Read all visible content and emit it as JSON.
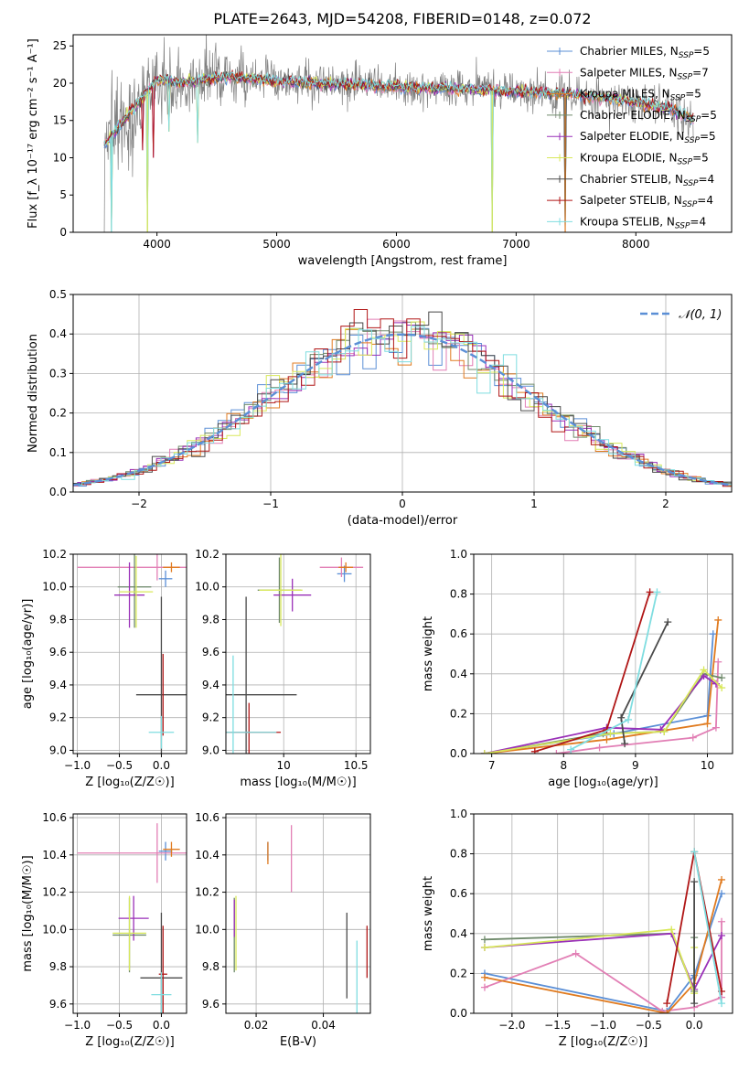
{
  "figure_title": "PLATE=2643, MJD=54208, FIBERID=0148, z=0.072",
  "colors": {
    "chabrier_miles": "#5b8fd6",
    "salpeter_miles": "#e27fb5",
    "kroupa_miles": "#e07b20",
    "chabrier_elodie": "#6f8a6b",
    "salpeter_elodie": "#9a30b8",
    "kroupa_elodie": "#d8e85a",
    "chabrier_stelib": "#4a4a4a",
    "salpeter_stelib": "#b01616",
    "kroupa_stelib": "#7fdde0",
    "data_spectrum": "#808080"
  },
  "models": [
    {
      "name": "Chabrier MILES",
      "nssp": "5",
      "color": "#5b8fd6"
    },
    {
      "name": "Salpeter MILES",
      "nssp": "7",
      "color": "#e27fb5"
    },
    {
      "name": "Kroupa MILES",
      "nssp": "5",
      "color": "#e07b20"
    },
    {
      "name": "Chabrier ELODIE",
      "nssp": "5",
      "color": "#6f8a6b"
    },
    {
      "name": "Salpeter ELODIE",
      "nssp": "5",
      "color": "#9a30b8"
    },
    {
      "name": "Kroupa ELODIE",
      "nssp": "5",
      "color": "#d8e85a"
    },
    {
      "name": "Chabrier STELIB",
      "nssp": "4",
      "color": "#4a4a4a"
    },
    {
      "name": "Salpeter STELIB",
      "nssp": "4",
      "color": "#b01616"
    },
    {
      "name": "Kroupa STELIB",
      "nssp": "4",
      "color": "#7fdde0"
    }
  ],
  "chart_data": [
    {
      "type": "line",
      "xlabel": "wavelength [Angstrom, rest frame]",
      "ylabel": "Flux [f_λ 10⁻¹⁷ erg cm⁻² s⁻¹ A⁻¹]",
      "xlim": [
        3300,
        8800
      ],
      "ylim": [
        0,
        26.5
      ],
      "xticks": [
        4000,
        5000,
        6000,
        7000,
        8000
      ],
      "yticks": [
        0,
        5,
        10,
        15,
        20,
        25
      ],
      "grid": false,
      "legend": "top-right",
      "continuum": {
        "x": [
          3550,
          3600,
          3700,
          3800,
          3900,
          4000,
          4100,
          4200,
          4400,
          4600,
          4800,
          5000,
          5300,
          5600,
          6000,
          6400,
          6800,
          7200,
          7600,
          8000,
          8300,
          8500
        ],
        "y": [
          11.5,
          12.5,
          14.5,
          16.5,
          18.5,
          20.5,
          20.3,
          20.0,
          20.5,
          20.8,
          20.5,
          20.3,
          20.0,
          19.8,
          19.5,
          19.3,
          19.0,
          18.8,
          18.3,
          17.5,
          16.5,
          15.0
        ]
      },
      "dips": [
        {
          "x": 3620,
          "y": 0
        },
        {
          "x": 3920,
          "y": 0
        },
        {
          "x": 6800,
          "y": 0
        },
        {
          "x": 7410,
          "y": 0
        },
        {
          "x": 4340,
          "y": 12
        },
        {
          "x": 4100,
          "y": 13.5
        },
        {
          "x": 3970,
          "y": 10
        },
        {
          "x": 3880,
          "y": 11
        }
      ]
    },
    {
      "type": "step-histogram",
      "xlabel": "(data-model)/error",
      "ylabel": "Normed distribution",
      "xlim": [
        -2.5,
        2.5
      ],
      "ylim": [
        0,
        0.5
      ],
      "xticks": [
        -2,
        -1,
        0,
        1,
        2
      ],
      "xtick_labels": [
        "−2",
        "−1",
        "0",
        "1",
        "2"
      ],
      "yticks": [
        0.0,
        0.1,
        0.2,
        0.3,
        0.4,
        0.5
      ],
      "grid": true,
      "legend": "top-right",
      "reference_curve": {
        "name": "𝒩(0, 1)",
        "mean": 0,
        "sigma": 1,
        "color": "#5b8fd6"
      },
      "bin_width": 0.1
    },
    {
      "type": "scatter",
      "xlabel": "Z [log₁₀(Z/Z☉)]",
      "ylabel": "age  [log₁₀(age/yr)]",
      "xlim": [
        -1.05,
        0.3
      ],
      "ylim": [
        8.98,
        10.2
      ],
      "xticks": [
        -1.0,
        -0.5,
        0.0
      ],
      "xtick_labels": [
        "−1.0",
        "−0.5",
        "0.0"
      ],
      "yticks": [
        9.0,
        9.2,
        9.4,
        9.6,
        9.8,
        10.0,
        10.2
      ],
      "grid": true,
      "points": [
        {
          "model": 0,
          "x": 0.05,
          "y": 10.05,
          "ex": 0.08,
          "ey": 0.05
        },
        {
          "model": 1,
          "x": -0.05,
          "y": 10.12,
          "ex": 0.95,
          "ey": 0.08
        },
        {
          "model": 2,
          "x": 0.12,
          "y": 10.12,
          "ex": 0.1,
          "ey": 0.03
        },
        {
          "model": 3,
          "x": -0.32,
          "y": 10.0,
          "ex": 0.2,
          "ey": 0.25
        },
        {
          "model": 4,
          "x": -0.38,
          "y": 9.95,
          "ex": 0.18,
          "ey": 0.2
        },
        {
          "model": 5,
          "x": -0.3,
          "y": 9.97,
          "ex": 0.2,
          "ey": 0.22
        },
        {
          "model": 6,
          "x": 0.0,
          "y": 9.34,
          "ex": 0.3,
          "ey": 0.6
        },
        {
          "model": 7,
          "x": 0.02,
          "y": 9.34,
          "ex": 0.0,
          "ey": 0.25
        },
        {
          "model": 8,
          "x": 0.0,
          "y": 9.11,
          "ex": 0.15,
          "ey": 0.1
        }
      ]
    },
    {
      "type": "scatter",
      "xlabel": "mass [log₁₀(M/M☉)]",
      "ylabel": "",
      "xlim": [
        9.6,
        10.6
      ],
      "ylim": [
        8.98,
        10.2
      ],
      "xticks": [
        10.0,
        10.5
      ],
      "yticks": [
        9.0,
        9.2,
        9.4,
        9.6,
        9.8,
        10.0,
        10.2
      ],
      "grid": true,
      "points": [
        {
          "model": 0,
          "x": 10.42,
          "y": 10.08,
          "ex": 0.05,
          "ey": 0.05
        },
        {
          "model": 1,
          "x": 10.4,
          "y": 10.12,
          "ex": 0.15,
          "ey": 0.06
        },
        {
          "model": 2,
          "x": 10.43,
          "y": 10.12,
          "ex": 0.05,
          "ey": 0.03
        },
        {
          "model": 3,
          "x": 9.97,
          "y": 9.98,
          "ex": 0.15,
          "ey": 0.2
        },
        {
          "model": 4,
          "x": 10.06,
          "y": 9.95,
          "ex": 0.13,
          "ey": 0.1
        },
        {
          "model": 5,
          "x": 9.98,
          "y": 9.98,
          "ex": 0.15,
          "ey": 0.22
        },
        {
          "model": 6,
          "x": 9.74,
          "y": 9.34,
          "ex": 0.35,
          "ey": 0.6
        },
        {
          "model": 7,
          "x": 9.76,
          "y": 9.11,
          "ex": 0.22,
          "ey": 0.18
        },
        {
          "model": 8,
          "x": 9.65,
          "y": 9.11,
          "ex": 0.3,
          "ey": 0.47
        }
      ]
    },
    {
      "type": "line",
      "xlabel": "age  [log₁₀(age/yr)]",
      "ylabel": "mass weight",
      "xlim": [
        6.75,
        10.35
      ],
      "ylim": [
        0,
        1.0
      ],
      "xticks": [
        7,
        8,
        9,
        10
      ],
      "yticks": [
        0.0,
        0.2,
        0.4,
        0.6,
        0.8,
        1.0
      ],
      "grid": true,
      "series": [
        {
          "model": 0,
          "x": [
            6.9,
            8.7,
            10.0,
            10.08
          ],
          "y": [
            0.0,
            0.1,
            0.19,
            0.6
          ]
        },
        {
          "model": 1,
          "x": [
            7.9,
            8.5,
            9.8,
            10.12,
            10.15
          ],
          "y": [
            0.0,
            0.03,
            0.08,
            0.13,
            0.46
          ]
        },
        {
          "model": 2,
          "x": [
            6.9,
            8.6,
            10.0,
            10.15
          ],
          "y": [
            0.0,
            0.07,
            0.15,
            0.67
          ]
        },
        {
          "model": 3,
          "x": [
            6.9,
            8.55,
            9.4,
            9.95,
            10.2
          ],
          "y": [
            0.0,
            0.1,
            0.11,
            0.4,
            0.38
          ]
        },
        {
          "model": 4,
          "x": [
            6.9,
            8.6,
            9.35,
            9.95,
            10.12
          ],
          "y": [
            0.0,
            0.13,
            0.12,
            0.39,
            0.35
          ]
        },
        {
          "model": 5,
          "x": [
            6.9,
            8.65,
            9.4,
            9.95,
            10.2
          ],
          "y": [
            0.0,
            0.1,
            0.11,
            0.42,
            0.33
          ]
        },
        {
          "model": 6,
          "x": [
            8.85,
            8.8,
            9.45
          ],
          "y": [
            0.05,
            0.18,
            0.66
          ]
        },
        {
          "model": 7,
          "x": [
            7.6,
            8.6,
            9.2
          ],
          "y": [
            0.01,
            0.12,
            0.81
          ]
        },
        {
          "model": 8,
          "x": [
            8.1,
            8.9,
            9.3
          ],
          "y": [
            0.02,
            0.17,
            0.81
          ]
        }
      ]
    },
    {
      "type": "scatter",
      "xlabel": "Z [log₁₀(Z/Z☉)]",
      "ylabel": "mass [log₁₀(M/M☉)]",
      "xlim": [
        -1.05,
        0.3
      ],
      "ylim": [
        9.55,
        10.62
      ],
      "xticks": [
        -1.0,
        -0.5,
        0.0
      ],
      "xtick_labels": [
        "−1.0",
        "−0.5",
        "0.0"
      ],
      "yticks": [
        9.6,
        9.8,
        10.0,
        10.2,
        10.4,
        10.6
      ],
      "grid": true,
      "points": [
        {
          "model": 0,
          "x": 0.05,
          "y": 10.42,
          "ex": 0.08,
          "ey": 0.05
        },
        {
          "model": 1,
          "x": -0.05,
          "y": 10.41,
          "ex": 0.95,
          "ey": 0.16
        },
        {
          "model": 2,
          "x": 0.12,
          "y": 10.43,
          "ex": 0.1,
          "ey": 0.04
        },
        {
          "model": 3,
          "x": -0.38,
          "y": 9.97,
          "ex": 0.2,
          "ey": 0.2
        },
        {
          "model": 4,
          "x": -0.33,
          "y": 10.06,
          "ex": 0.18,
          "ey": 0.12
        },
        {
          "model": 5,
          "x": -0.38,
          "y": 9.98,
          "ex": 0.2,
          "ey": 0.2
        },
        {
          "model": 6,
          "x": 0.0,
          "y": 9.74,
          "ex": 0.25,
          "ey": 0.35
        },
        {
          "model": 7,
          "x": 0.02,
          "y": 9.76,
          "ex": 0.05,
          "ey": 0.26
        },
        {
          "model": 8,
          "x": 0.0,
          "y": 9.65,
          "ex": 0.12,
          "ey": 0.12
        }
      ]
    },
    {
      "type": "scatter",
      "xlabel": "E(B-V)",
      "ylabel": "",
      "xlim": [
        0.011,
        0.054
      ],
      "ylim": [
        9.55,
        10.62
      ],
      "xticks": [
        0.02,
        0.04
      ],
      "yticks": [
        9.6,
        9.8,
        10.0,
        10.2,
        10.4,
        10.6
      ],
      "grid": true,
      "points": [
        {
          "model": 0,
          "x": 0.0235,
          "y": 10.42,
          "ex": 0.0,
          "ey": 0.05
        },
        {
          "model": 1,
          "x": 0.0305,
          "y": 10.38,
          "ex": 0.0,
          "ey": 0.18
        },
        {
          "model": 2,
          "x": 0.0235,
          "y": 10.41,
          "ex": 0.0,
          "ey": 0.06
        },
        {
          "model": 3,
          "x": 0.0135,
          "y": 9.97,
          "ex": 0.0,
          "ey": 0.2
        },
        {
          "model": 4,
          "x": 0.0135,
          "y": 10.06,
          "ex": 0.0,
          "ey": 0.1
        },
        {
          "model": 5,
          "x": 0.014,
          "y": 9.98,
          "ex": 0.0,
          "ey": 0.2
        },
        {
          "model": 6,
          "x": 0.047,
          "y": 9.86,
          "ex": 0.0,
          "ey": 0.23
        },
        {
          "model": 7,
          "x": 0.053,
          "y": 9.88,
          "ex": 0.0,
          "ey": 0.14
        },
        {
          "model": 8,
          "x": 0.05,
          "y": 9.74,
          "ex": 0.0,
          "ey": 0.2
        }
      ]
    },
    {
      "type": "line",
      "xlabel": "Z [log₁₀(Z/Z☉)]",
      "ylabel": "mass weight",
      "xlim": [
        -2.42,
        0.42
      ],
      "ylim": [
        0,
        1.0
      ],
      "xticks": [
        -2.0,
        -1.5,
        -1.0,
        -0.5,
        0.0
      ],
      "xtick_labels": [
        "−2.0",
        "−1.5",
        "−1.0",
        "−0.5",
        "0.0"
      ],
      "yticks": [
        0.0,
        0.2,
        0.4,
        0.6,
        0.8,
        1.0
      ],
      "grid": true,
      "series": [
        {
          "model": 0,
          "x": [
            -2.3,
            -0.3,
            0.0,
            0.3
          ],
          "y": [
            0.2,
            0.01,
            0.19,
            0.6
          ]
        },
        {
          "model": 1,
          "x": [
            -2.3,
            -1.3,
            -0.35,
            0.0,
            0.3,
            0.3
          ],
          "y": [
            0.13,
            0.3,
            0.01,
            0.03,
            0.08,
            0.46
          ]
        },
        {
          "model": 2,
          "x": [
            -2.3,
            -0.3,
            0.0,
            0.3
          ],
          "y": [
            0.18,
            0.0,
            0.15,
            0.67
          ]
        },
        {
          "model": 3,
          "x": [
            -2.3,
            -0.25,
            0.0,
            0.0
          ],
          "y": [
            0.37,
            0.4,
            0.11,
            0.38
          ]
        },
        {
          "model": 4,
          "x": [
            -2.3,
            -0.25,
            0.0,
            0.3
          ],
          "y": [
            0.33,
            0.4,
            0.12,
            0.39
          ]
        },
        {
          "model": 5,
          "x": [
            -2.3,
            -0.25,
            0.0,
            0.0
          ],
          "y": [
            0.33,
            0.42,
            0.1,
            0.33
          ]
        },
        {
          "model": 6,
          "x": [
            0.0,
            0.0
          ],
          "y": [
            0.05,
            0.66
          ]
        },
        {
          "model": 7,
          "x": [
            -0.3,
            0.0,
            0.3
          ],
          "y": [
            0.05,
            0.81,
            0.11
          ]
        },
        {
          "model": 8,
          "x": [
            0.0,
            0.3
          ],
          "y": [
            0.81,
            0.05
          ]
        }
      ]
    }
  ]
}
